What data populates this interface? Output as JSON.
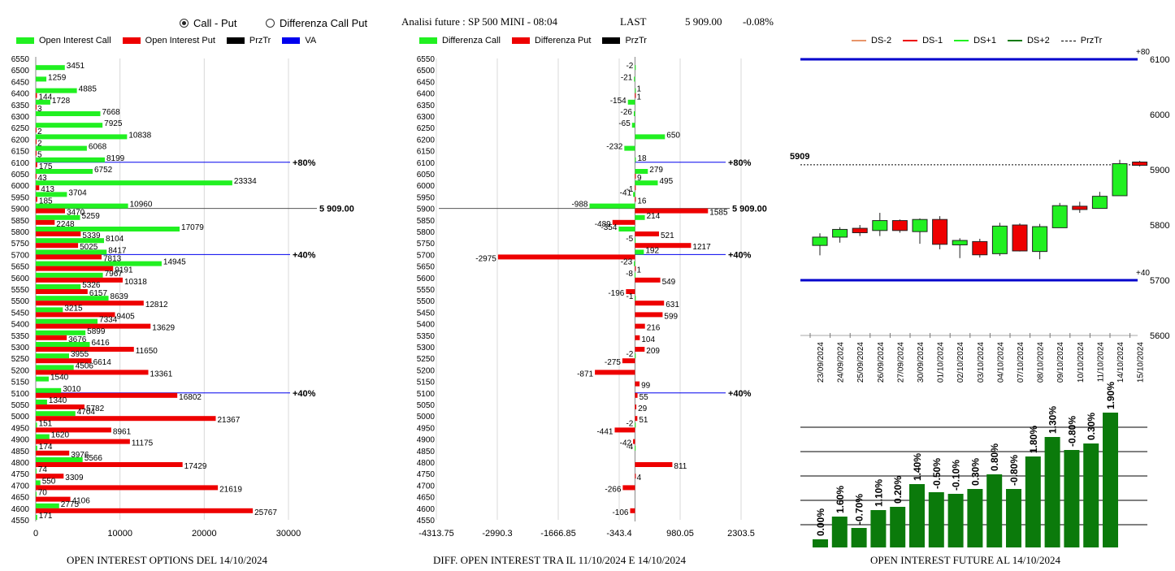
{
  "controls": {
    "radio_call_put": "Call - Put",
    "radio_diff": "Differenza Call Put",
    "selected": "Call - Put"
  },
  "header": {
    "title": "Analisi future : SP 500 MINI - 08:04",
    "last_label": "LAST",
    "last_value": "5 909.00",
    "change": "-0.08%"
  },
  "colors": {
    "green": "#21f021",
    "red": "#ee0000",
    "black": "#000000",
    "blue": "#0000ee",
    "dark_green": "#0b7a0b"
  },
  "legend_left": [
    {
      "label": "Open Interest Call",
      "color": "#21f021"
    },
    {
      "label": "Open Interest Put",
      "color": "#ee0000"
    },
    {
      "label": "PrzTr",
      "color": "#000000"
    },
    {
      "label": "VA",
      "color": "#0000ee"
    }
  ],
  "legend_mid": [
    {
      "label": "Differenza Call",
      "color": "#21f021"
    },
    {
      "label": "Differenza Put",
      "color": "#ee0000"
    },
    {
      "label": "PrzTr",
      "color": "#000000"
    }
  ],
  "legend_right": [
    {
      "label": "DS-2",
      "color": "#e8956a"
    },
    {
      "label": "DS-1",
      "color": "#ee0000"
    },
    {
      "label": "DS+1",
      "color": "#21f021"
    },
    {
      "label": "DS+2",
      "color": "#0b7a0b"
    },
    {
      "label": "PrzTr",
      "color": "#000000"
    }
  ],
  "captions": {
    "left": "OPEN INTEREST OPTIONS DEL 14/10/2024",
    "mid": "DIFF. OPEN INTEREST TRA IL 11/10/2024 E 14/10/2024",
    "right": "OPEN INTEREST FUTURE AL 14/10/2024"
  },
  "chart_data": [
    {
      "type": "bar",
      "name_caption": "OPEN INTEREST OPTIONS DEL 14/10/2024",
      "strikes": [
        6550,
        6500,
        6450,
        6400,
        6350,
        6300,
        6250,
        6200,
        6150,
        6100,
        6050,
        6000,
        5950,
        5900,
        5850,
        5800,
        5750,
        5700,
        5650,
        5600,
        5550,
        5500,
        5450,
        5400,
        5350,
        5300,
        5250,
        5200,
        5150,
        5100,
        5050,
        5000,
        4950,
        4900,
        4850,
        4800,
        4750,
        4700,
        4650,
        4600,
        4550
      ],
      "series": [
        {
          "name": "Open Interest Call",
          "values": [
            null,
            3451,
            1259,
            4885,
            1728,
            7668,
            7925,
            10838,
            6068,
            8199,
            6752,
            23334,
            3704,
            10960,
            5259,
            17079,
            8104,
            8417,
            14945,
            7967,
            5326,
            8639,
            3215,
            7334,
            5899,
            6416,
            3955,
            4506,
            1540,
            3010,
            1340,
            4704,
            151,
            1620,
            174,
            5566,
            74,
            550,
            70,
            2775,
            171
          ]
        },
        {
          "name": "Open Interest Put",
          "values": [
            null,
            null,
            null,
            144,
            3,
            null,
            2,
            2,
            5,
            175,
            43,
            413,
            185,
            3470,
            2248,
            5339,
            5025,
            7813,
            9191,
            10318,
            6157,
            12812,
            9405,
            13629,
            3676,
            11650,
            6614,
            13361,
            null,
            16802,
            5782,
            21367,
            8961,
            11175,
            3976,
            17429,
            3309,
            21619,
            4106,
            25767,
            null
          ]
        }
      ],
      "xlim": [
        0,
        30000
      ],
      "xticks": [
        "0",
        "10000",
        "20000",
        "30000"
      ],
      "lines": [
        {
          "strike": 6100,
          "label": "80%"
        },
        {
          "strike": 5900,
          "label": "5 909.00"
        },
        {
          "strike": 5700,
          "label": "40%"
        },
        {
          "strike": 5100,
          "label": "40%"
        }
      ]
    },
    {
      "type": "bar",
      "name_caption": "DIFF. OPEN INTEREST TRA IL 11/10/2024 E 14/10/2024",
      "strikes": [
        6550,
        6500,
        6450,
        6400,
        6350,
        6300,
        6250,
        6200,
        6150,
        6100,
        6050,
        6000,
        5950,
        5900,
        5850,
        5800,
        5750,
        5700,
        5650,
        5600,
        5550,
        5500,
        5450,
        5400,
        5350,
        5300,
        5250,
        5200,
        5150,
        5100,
        5050,
        5000,
        4950,
        4900,
        4850,
        4800,
        4750,
        4700,
        4650,
        4600,
        4550
      ],
      "series": [
        {
          "name": "Differenza Call",
          "values": [
            null,
            -2,
            -21,
            1,
            -154,
            -26,
            -65,
            650,
            -232,
            18,
            279,
            495,
            -41,
            -988,
            214,
            -354,
            -5,
            192,
            -23,
            -8,
            null,
            -1,
            null,
            null,
            null,
            null,
            -2,
            null,
            null,
            null,
            null,
            null,
            -2,
            null,
            -4,
            null,
            null,
            null,
            null,
            null,
            null
          ]
        },
        {
          "name": "Differenza Put",
          "values": [
            null,
            null,
            null,
            1,
            null,
            null,
            null,
            null,
            null,
            null,
            9,
            -1,
            16,
            1585,
            -489,
            521,
            1217,
            -2975,
            1,
            549,
            -196,
            631,
            599,
            216,
            104,
            209,
            -275,
            -871,
            99,
            55,
            29,
            51,
            -441,
            -42,
            null,
            811,
            4,
            -266,
            null,
            -106,
            null
          ]
        }
      ],
      "xlim": [
        -4313.75,
        2303.5
      ],
      "xticks": [
        "-4313.75",
        "-2990.3",
        "-1666.85",
        "-343.4",
        "980.05",
        "2303.5"
      ],
      "lines": [
        {
          "strike": 6100,
          "label": "80%"
        },
        {
          "strike": 5900,
          "label": "5 909.00"
        },
        {
          "strike": 5700,
          "label": "40%"
        },
        {
          "strike": 5100,
          "label": "40%"
        }
      ]
    },
    {
      "type": "candlestick",
      "dates": [
        "23/09/2024",
        "24/09/2024",
        "25/09/2024",
        "26/09/2024",
        "27/09/2024",
        "30/09/2024",
        "01/10/2024",
        "02/10/2024",
        "03/10/2024",
        "04/10/2024",
        "07/10/2024",
        "08/10/2024",
        "09/10/2024",
        "10/10/2024",
        "11/10/2024",
        "14/10/2024",
        "15/10/2024"
      ],
      "ohlc": [
        [
          5763,
          5785,
          5745,
          5778
        ],
        [
          5778,
          5796,
          5768,
          5792
        ],
        [
          5794,
          5800,
          5780,
          5786
        ],
        [
          5790,
          5822,
          5780,
          5808
        ],
        [
          5808,
          5810,
          5786,
          5790
        ],
        [
          5788,
          5812,
          5766,
          5810
        ],
        [
          5810,
          5816,
          5756,
          5765
        ],
        [
          5764,
          5776,
          5740,
          5772
        ],
        [
          5770,
          5775,
          5741,
          5746
        ],
        [
          5748,
          5804,
          5744,
          5798
        ],
        [
          5800,
          5803,
          5752,
          5753
        ],
        [
          5752,
          5802,
          5738,
          5797
        ],
        [
          5795,
          5840,
          5795,
          5835
        ],
        [
          5834,
          5842,
          5822,
          5828
        ],
        [
          5830,
          5860,
          5830,
          5852
        ],
        [
          5853,
          5918,
          5853,
          5911
        ],
        [
          5914,
          5916,
          5906,
          5908
        ]
      ],
      "ylim": [
        5600,
        6100
      ],
      "yticks": [
        "5600",
        "5700",
        "5800",
        "5900",
        "6000",
        "6100"
      ],
      "levels": [
        {
          "value": 6100,
          "label": "+80"
        },
        {
          "value": 5700,
          "label": "+40"
        }
      ],
      "przTr": {
        "value": 5909,
        "label": "5909"
      }
    },
    {
      "type": "bar",
      "values": [
        10,
        38,
        24,
        46,
        50,
        78,
        68,
        66,
        72,
        90,
        72,
        112,
        136,
        120,
        128,
        166
      ],
      "labels": [
        "0.00%",
        "1.60%",
        "-0.70%",
        "1.10%",
        "0.20%",
        "1.40%",
        "-0.50%",
        "-0.10%",
        "0.30%",
        "0.80%",
        "-0.80%",
        "1.80%",
        "1.30%",
        "-0.80%",
        "0.30%",
        "1.90%"
      ]
    }
  ]
}
